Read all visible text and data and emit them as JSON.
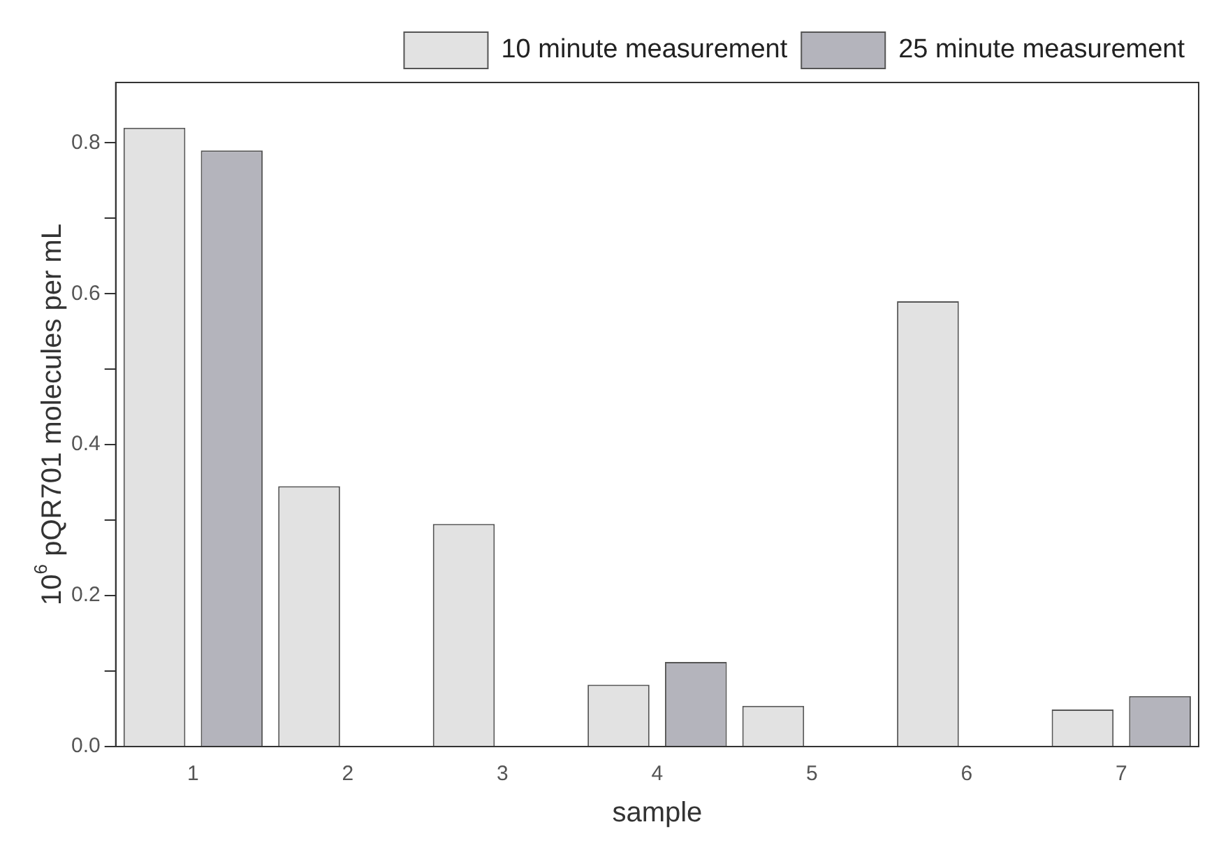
{
  "chart_data": {
    "type": "bar",
    "xlabel": "sample",
    "ylabel": "10$^{6}$ pQR701 molecules per mL",
    "categories": [
      "1",
      "2",
      "3",
      "4",
      "5",
      "6",
      "7"
    ],
    "series": [
      {
        "name": "10 minute measurement",
        "color": "#e2e2e2",
        "values": [
          0.82,
          0.345,
          0.295,
          0.082,
          0.054,
          0.59,
          0.049
        ]
      },
      {
        "name": "25 minute measurement",
        "color": "#b4b4bc",
        "values": [
          0.79,
          null,
          null,
          0.112,
          null,
          null,
          0.067
        ]
      }
    ],
    "ylim": [
      0,
      0.88
    ],
    "yticks": [
      {
        "value": 0,
        "label": "0.0"
      },
      {
        "value": 0.1,
        "label": null
      },
      0.2,
      {
        "value": 0.3,
        "label": null
      },
      0.4,
      {
        "value": 0.5,
        "label": null
      },
      0.6,
      {
        "value": 0.7,
        "label": null
      },
      0.8
    ],
    "grid": false,
    "legend": "top right"
  }
}
